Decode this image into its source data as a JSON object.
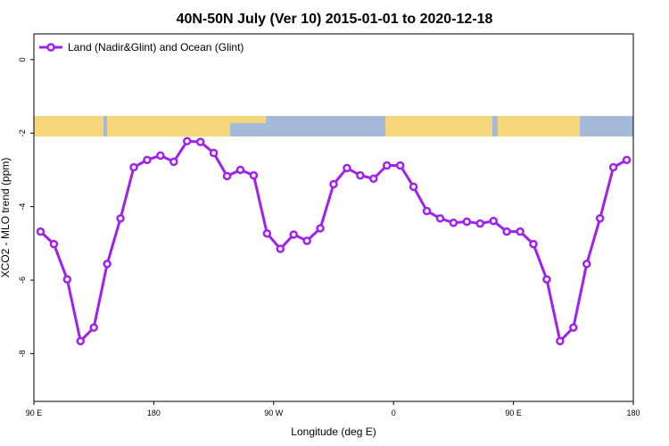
{
  "chart_data": {
    "type": "line",
    "title": "40N-50N July (Ver 10)   2015-01-01 to 2020-12-18",
    "x_label": "Longitude (deg E)",
    "y_label": "XCO2 - MLO trend (ppm)",
    "x": [
      95,
      105,
      115,
      125,
      135,
      145,
      155,
      165,
      175,
      185,
      195,
      205,
      215,
      225,
      235,
      245,
      255,
      265,
      275,
      285,
      295,
      305,
      315,
      325,
      335,
      345,
      355,
      365,
      375,
      385,
      395,
      405,
      415,
      425,
      435,
      445,
      455,
      465,
      475,
      485,
      495,
      505,
      515,
      525,
      535
    ],
    "series": [
      {
        "name": "Land (Nadir&Glint) and Ocean (Glint)",
        "color": "#a020f0",
        "values": [
          -4.68,
          -5.02,
          -5.98,
          -7.66,
          -7.29,
          -5.56,
          -4.32,
          -2.93,
          -2.73,
          -2.61,
          -2.78,
          -2.22,
          -2.24,
          -2.54,
          -3.17,
          -3.0,
          -3.15,
          -4.73,
          -5.15,
          -4.76,
          -4.93,
          -4.59,
          -3.39,
          -2.95,
          -3.15,
          -3.24,
          -2.88,
          -2.88,
          -3.46,
          -4.12,
          -4.32,
          -4.44,
          -4.41,
          -4.46,
          -4.39,
          -4.68,
          -4.68,
          -5.02,
          -5.98,
          -7.66,
          -7.29,
          -5.56,
          -4.32,
          -2.93,
          -2.73
        ]
      }
    ],
    "xlim": [
      90,
      540
    ],
    "xticks": [
      {
        "value": 90,
        "label": "90 E"
      },
      {
        "value": 180,
        "label": "180"
      },
      {
        "value": 270,
        "label": "90 W"
      },
      {
        "value": 360,
        "label": "0"
      },
      {
        "value": 450,
        "label": "90 E"
      },
      {
        "value": 540,
        "label": "180"
      }
    ],
    "ylim": [
      -9.3,
      0.7
    ],
    "yticks": [
      0,
      -2,
      -4,
      -6,
      -8
    ],
    "legend": "top-left"
  }
}
